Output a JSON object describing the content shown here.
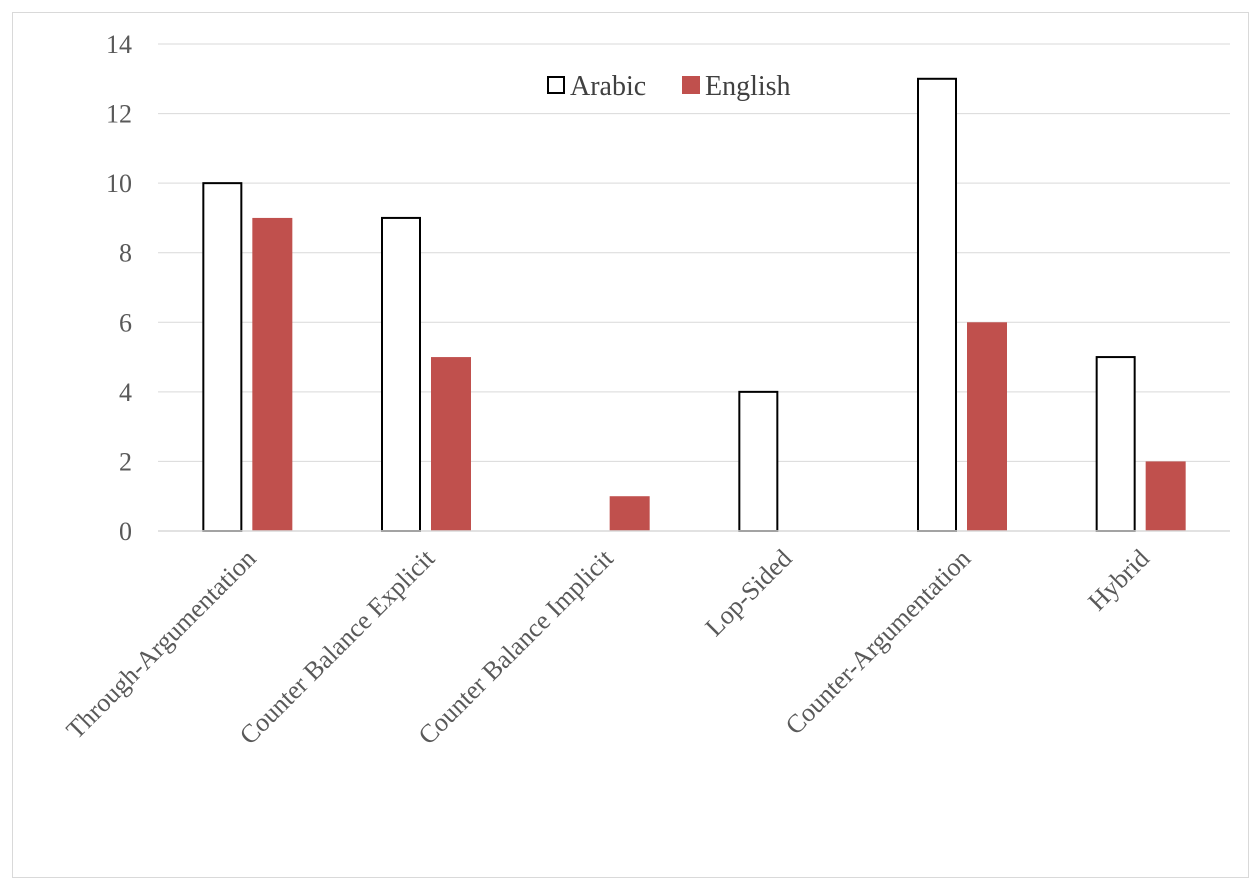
{
  "chart_data": {
    "type": "bar",
    "categories": [
      "Through-Argumentation",
      "Counter Balance Explicit",
      "Counter Balance Implicit",
      "Lop-Sided",
      "Counter-Argumentation",
      "Hybrid"
    ],
    "series": [
      {
        "name": "Arabic",
        "values": [
          10,
          9,
          0,
          4,
          13,
          5
        ],
        "fill": "#ffffff",
        "stroke": "#000000"
      },
      {
        "name": "English",
        "values": [
          9,
          5,
          1,
          0,
          6,
          2
        ],
        "fill": "#c0504d",
        "stroke": "#c0504d"
      }
    ],
    "y_ticks": [
      "0",
      "2",
      "4",
      "6",
      "8",
      "10",
      "12",
      "14"
    ],
    "ylim": [
      0,
      14
    ],
    "grid": true,
    "legend_position": "top-center",
    "colors": {
      "gridline": "#d9d9d9",
      "axis": "#d9d9d9"
    }
  }
}
